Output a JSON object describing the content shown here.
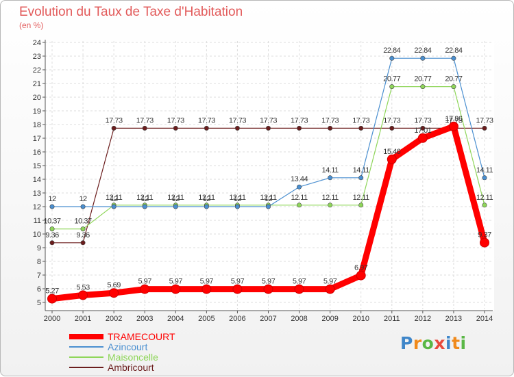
{
  "header": {
    "title": "Evolution du Taux de Taxe d'Habitation",
    "subtitle": "(en %)"
  },
  "logo": {
    "text": "Proxiti",
    "colors": [
      "#3f86c9",
      "#f08a1c",
      "#5ab746",
      "#e84a3c",
      "#3f86c9",
      "#f08a1c",
      "#5ab746"
    ]
  },
  "chart_data": {
    "type": "line",
    "title": "Evolution du Taux de Taxe d'Habitation",
    "ylabel": "(en %)",
    "xlabel": "",
    "x": [
      "2000",
      "2001",
      "2002",
      "2003",
      "2004",
      "2005",
      "2006",
      "2007",
      "2008",
      "2009",
      "2010",
      "2011",
      "2012",
      "2013",
      "2014"
    ],
    "ylim": [
      5,
      24
    ],
    "yticks": [
      5,
      6,
      7,
      8,
      9,
      10,
      11,
      12,
      13,
      14,
      15,
      16,
      17,
      18,
      19,
      20,
      21,
      22,
      23,
      24
    ],
    "grid": true,
    "legend_position": "bottom-left",
    "series": [
      {
        "name": "Ambricourt",
        "color": "#6b1d1d",
        "values": [
          9.36,
          9.36,
          17.73,
          17.73,
          17.73,
          17.73,
          17.73,
          17.73,
          17.73,
          17.73,
          17.73,
          17.73,
          17.73,
          17.73,
          17.73
        ],
        "labels": [
          "9.36",
          "9.36",
          "17.73",
          "17.73",
          "17.73",
          "17.73",
          "17.73",
          "17.73",
          "17.73",
          "17.73",
          "17.73",
          "17.73",
          "17.73",
          "17.73",
          "17.73"
        ]
      },
      {
        "name": "Maisoncelle",
        "color": "#8fd65a",
        "values": [
          10.37,
          10.37,
          12.11,
          12.11,
          12.11,
          12.11,
          12.11,
          12.11,
          12.11,
          12.11,
          12.11,
          20.77,
          20.77,
          20.77,
          12.11
        ],
        "labels": [
          "10.37",
          "10.37",
          "12.11",
          "12.11",
          "12.11",
          "12.11",
          "12.11",
          "12.11",
          "12.11",
          "12.11",
          "12.11",
          "20.77",
          "20.77",
          "20.77",
          "12.11"
        ]
      },
      {
        "name": "Azincourt",
        "color": "#4a8fd0",
        "values": [
          12,
          12,
          12,
          12,
          12,
          12,
          12,
          12,
          13.44,
          14.11,
          14.11,
          22.84,
          22.84,
          22.84,
          14.11
        ],
        "labels": [
          "12",
          "12",
          "12",
          "12",
          "12",
          "12",
          "12",
          "12",
          "13.44",
          "14.11",
          "14.11",
          "22.84",
          "22.84",
          "22.84",
          "14.11"
        ]
      },
      {
        "name": "TRAMECOURT",
        "color": "#ff0000",
        "values": [
          5.27,
          5.53,
          5.69,
          5.97,
          5.97,
          5.97,
          5.97,
          5.97,
          5.97,
          5.97,
          6.97,
          15.46,
          17.01,
          17.86,
          9.37
        ],
        "labels": [
          "5.27",
          "5.53",
          "5.69",
          "5.97",
          "5.97",
          "5.97",
          "5.97",
          "5.97",
          "5.97",
          "5.97",
          "6.97",
          "15.46",
          "17.01",
          "17.86",
          "9.37"
        ]
      }
    ]
  },
  "legend": {
    "items": [
      {
        "label": "TRAMECOURT",
        "color": "#ff0000"
      },
      {
        "label": "Azincourt",
        "color": "#4a8fd0"
      },
      {
        "label": "Maisoncelle",
        "color": "#8fd65a"
      },
      {
        "label": "Ambricourt",
        "color": "#6b1d1d"
      }
    ]
  }
}
